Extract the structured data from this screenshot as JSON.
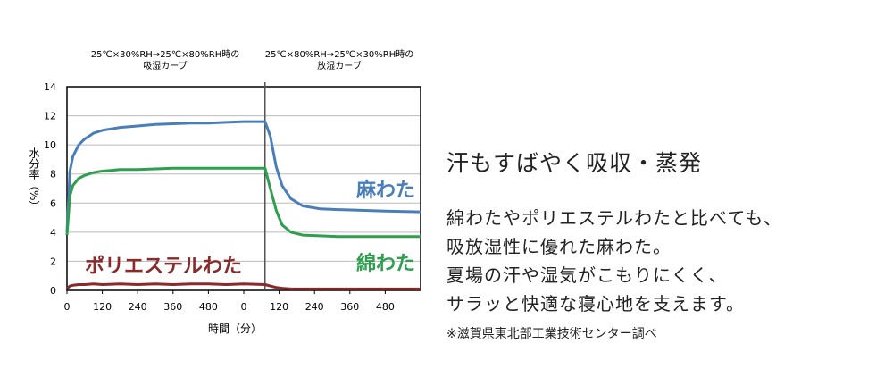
{
  "chart_data": {
    "type": "line",
    "phase_labels": [
      [
        "25℃×30%RH→25℃×80%RH時の",
        "吸湿カーブ"
      ],
      [
        "25℃×80%RH→25℃×30%RH時の",
        "放湿カーブ"
      ]
    ],
    "y_label": "水分率（%）",
    "x_label": "時間（分）",
    "x": [
      0,
      10,
      20,
      40,
      60,
      90,
      120,
      180,
      240,
      300,
      360,
      420,
      480,
      540,
      600,
      672,
      690,
      710,
      730,
      760,
      800,
      860,
      920,
      1000,
      1080,
      1200
    ],
    "series": [
      {
        "name": "麻わた",
        "color": "#4a7ebb",
        "values": [
          4.0,
          8.2,
          9.2,
          10.0,
          10.4,
          10.8,
          11.0,
          11.2,
          11.3,
          11.4,
          11.45,
          11.5,
          11.5,
          11.55,
          11.6,
          11.6,
          10.6,
          8.5,
          7.2,
          6.3,
          5.8,
          5.6,
          5.55,
          5.5,
          5.45,
          5.4
        ]
      },
      {
        "name": "綿わた",
        "color": "#2e9e4f",
        "values": [
          3.8,
          6.5,
          7.2,
          7.7,
          7.9,
          8.1,
          8.2,
          8.3,
          8.3,
          8.35,
          8.4,
          8.4,
          8.4,
          8.4,
          8.4,
          8.4,
          7.0,
          5.5,
          4.5,
          4.0,
          3.8,
          3.75,
          3.7,
          3.7,
          3.7,
          3.7
        ]
      },
      {
        "name": "ポリエステルわた",
        "color": "#8b2a2a",
        "values": [
          0.1,
          0.3,
          0.35,
          0.4,
          0.4,
          0.45,
          0.4,
          0.45,
          0.4,
          0.45,
          0.4,
          0.45,
          0.45,
          0.4,
          0.45,
          0.4,
          0.3,
          0.2,
          0.15,
          0.1,
          0.1,
          0.1,
          0.1,
          0.1,
          0.1,
          0.1
        ]
      }
    ],
    "phase_change_x": 672,
    "xlim": [
      0,
      1200
    ],
    "xticks": [
      0,
      120,
      240,
      360,
      480,
      {
        "value": 600,
        "label": "0"
      },
      {
        "value": 720,
        "label": "120"
      },
      {
        "value": 840,
        "label": "240"
      },
      {
        "value": 960,
        "label": "360"
      },
      {
        "value": 1080,
        "label": "480"
      }
    ],
    "ylim": [
      0,
      14
    ],
    "yticks": [
      0,
      2,
      4,
      6,
      8,
      10,
      12,
      14
    ],
    "grid": true
  },
  "side_text": {
    "heading": "汗もすばやく吸収・蒸発",
    "body": [
      "綿わたやポリエステルわたと比べても、",
      "吸放湿性に優れた麻わた。",
      "夏場の汗や湿気がこもりにくく、",
      "サラッと快適な寝心地を支えます。"
    ],
    "note": "※滋賀県東北部工業技術センター調べ"
  }
}
